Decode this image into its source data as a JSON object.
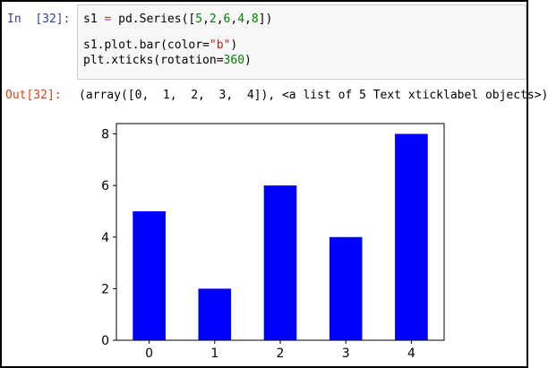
{
  "input_cell": {
    "prompt_label": "In",
    "prompt_number": "[32]:",
    "code": {
      "line1": {
        "var": "s1",
        "eq": " = ",
        "call": "pd.Series([",
        "n1": "5",
        "c1": ",",
        "n2": "2",
        "c2": ",",
        "n3": "6",
        "c3": ",",
        "n4": "4",
        "c4": ",",
        "n5": "8",
        "end": "])"
      },
      "line2": {
        "pre": "s1.plot.bar(color=",
        "str": "\"b\"",
        "end": ")"
      },
      "line3": {
        "pre": "plt.xticks(rotation=",
        "num": "360",
        "end": ")"
      }
    }
  },
  "output_cell": {
    "prompt": "Out[32]:",
    "text": "(array([0,  1,  2,  3,  4]), <a list of 5 Text xticklabel objects>)"
  },
  "chart_data": {
    "type": "bar",
    "categories": [
      "0",
      "1",
      "2",
      "3",
      "4"
    ],
    "values": [
      5,
      2,
      6,
      4,
      8
    ],
    "ylim": [
      0,
      8.4
    ],
    "yticks": [
      "0",
      "2",
      "4",
      "6",
      "8"
    ],
    "ytick_values": [
      0,
      2,
      4,
      6,
      8
    ],
    "bar_color": "#0000ff",
    "grid": false,
    "title": "",
    "xlabel": "",
    "ylabel": ""
  }
}
